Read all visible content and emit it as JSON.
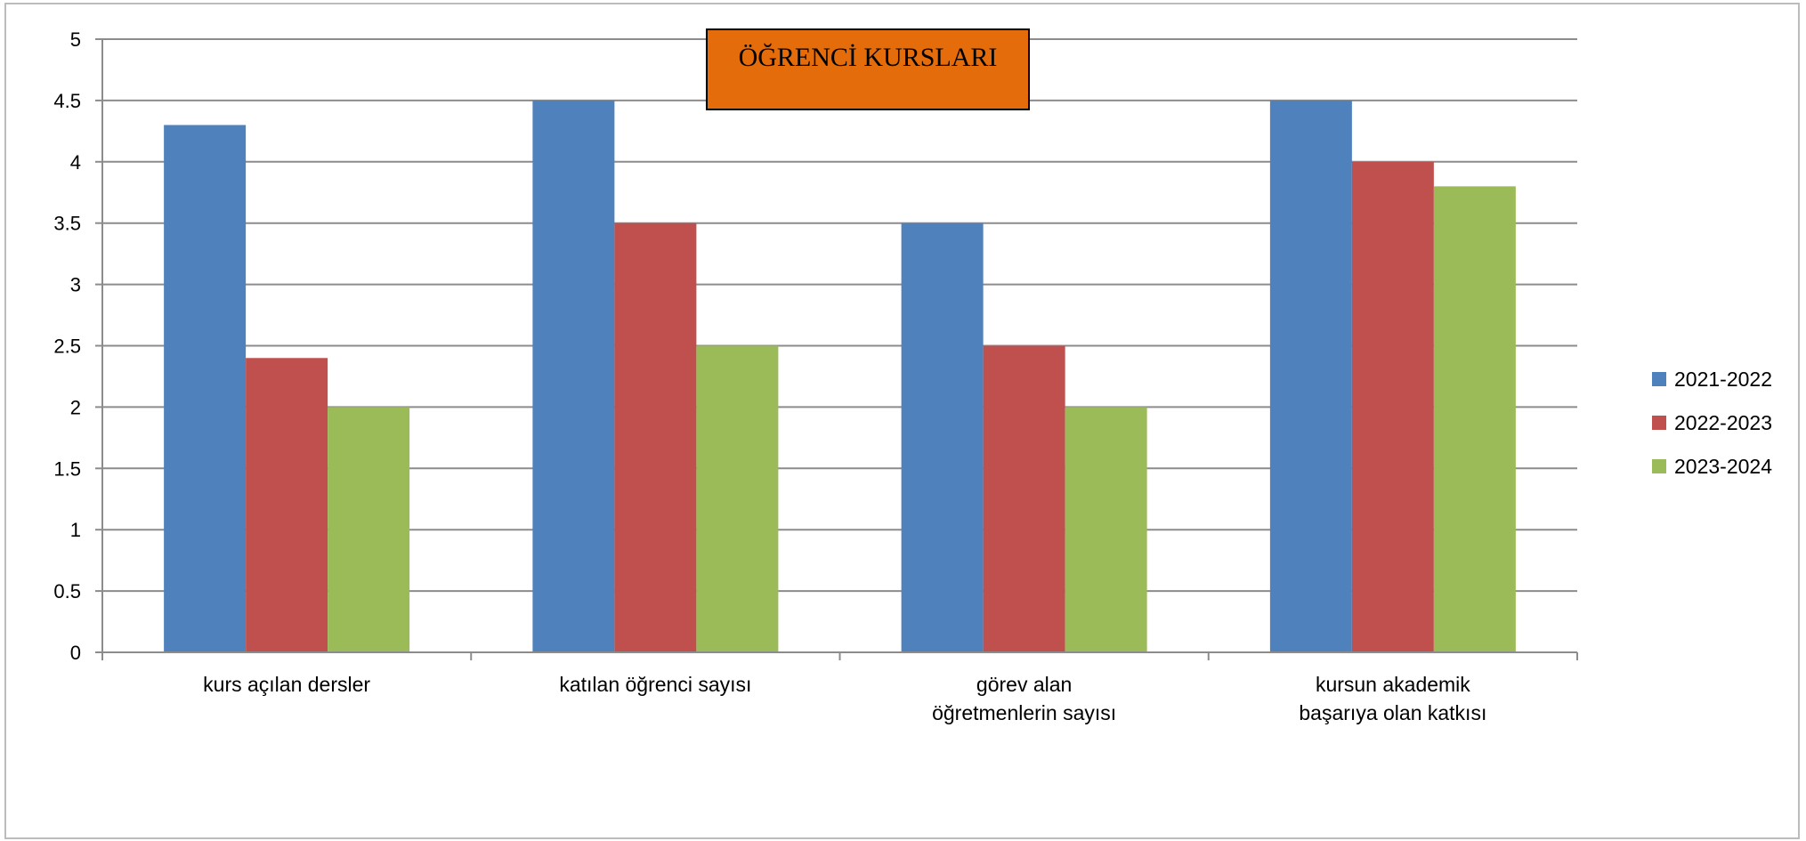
{
  "chart_data": {
    "type": "bar",
    "title": "ÖĞRENCİ KURSLARI",
    "categories": [
      [
        "kurs açılan dersler"
      ],
      [
        "katılan öğrenci sayısı"
      ],
      [
        "görev alan",
        "öğretmenlerin sayısı"
      ],
      [
        "kursun akademik",
        "başarıya olan katkısı"
      ]
    ],
    "series": [
      {
        "name": "2021-2022",
        "values": [
          4.3,
          4.5,
          3.5,
          4.5
        ]
      },
      {
        "name": "2022-2023",
        "values": [
          2.4,
          3.5,
          2.5,
          4.0
        ]
      },
      {
        "name": "2023-2024",
        "values": [
          2.0,
          2.5,
          2.0,
          3.8
        ]
      }
    ],
    "ylim": [
      0,
      5
    ],
    "yticks": [
      "0",
      "0.5",
      "1",
      "1.5",
      "2",
      "2.5",
      "3",
      "3.5",
      "4",
      "4.5",
      "5"
    ],
    "xlabel": "",
    "ylabel": "",
    "grid": true,
    "legend_position": "right",
    "colors": [
      "#4f81bd",
      "#c0504d",
      "#9bbb59"
    ],
    "title_box_color": "#e46c0a"
  }
}
